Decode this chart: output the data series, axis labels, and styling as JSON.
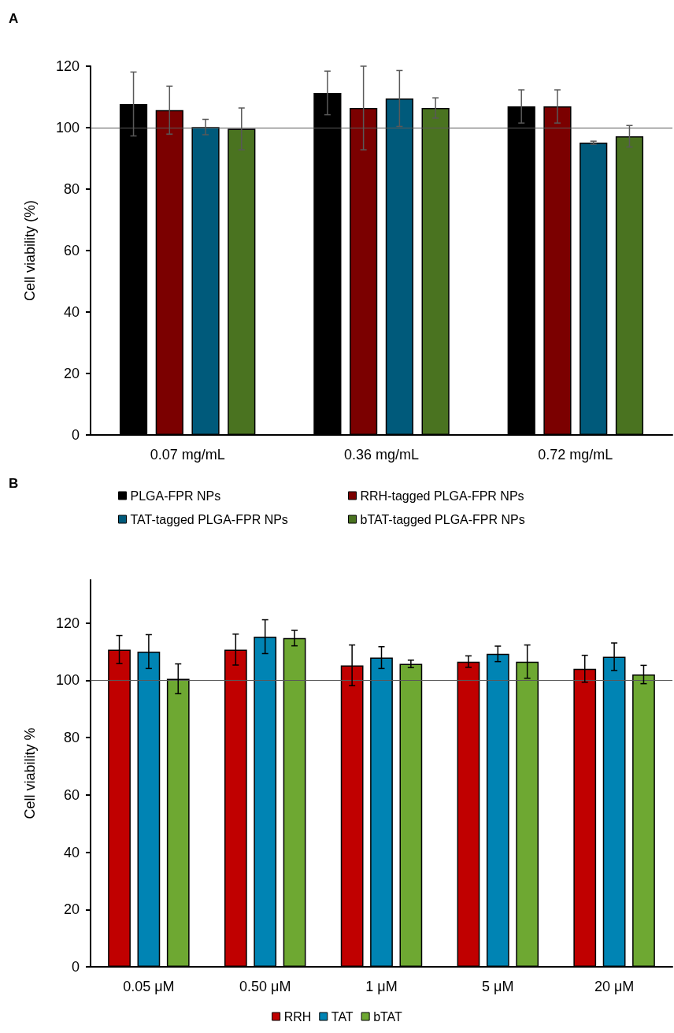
{
  "chart_data": [
    {
      "type": "bar",
      "title": "A",
      "ylabel": "Cell viability (%)",
      "categories": [
        "0.07 mg/mL",
        "0.36 mg/mL",
        "0.72 mg/mL"
      ],
      "ylim": [
        0,
        120
      ],
      "yticks": [
        0,
        20,
        40,
        60,
        80,
        100,
        120
      ],
      "grid": false,
      "legend": "bottom",
      "ref_lines": [
        {
          "axis": "y",
          "value": 100
        }
      ],
      "series": [
        {
          "name": "PLGA-FPR NPs",
          "color": "#000000",
          "values": [
            107.7,
            111.3,
            106.9
          ],
          "errors": [
            10.4,
            7.1,
            5.4
          ]
        },
        {
          "name": "RRH-tagged PLGA-FPR NPs",
          "color": "#7b0000",
          "values": [
            105.7,
            106.4,
            106.9
          ],
          "errors": [
            7.8,
            13.6,
            5.4
          ]
        },
        {
          "name": "TAT-tagged PLGA-FPR NPs",
          "color": "#005a7b",
          "values": [
            100.2,
            109.5,
            95.1
          ],
          "errors": [
            2.5,
            9.1,
            0.5
          ]
        },
        {
          "name": "bTAT-tagged PLGA-FPR NPs",
          "color": "#4a7320",
          "values": [
            99.6,
            106.4,
            97.2
          ],
          "errors": [
            6.8,
            3.3,
            3.5
          ]
        }
      ]
    },
    {
      "type": "bar",
      "title": "B",
      "ylabel": "Cell viability %",
      "categories": [
        "0.05 μM",
        "0.50 μM",
        "1 μM",
        "5 μM",
        "20 μM"
      ],
      "ylim": [
        0,
        135
      ],
      "yticks": [
        0,
        20,
        40,
        60,
        80,
        100,
        120
      ],
      "grid": false,
      "legend": "bottom",
      "ref_lines": [
        {
          "axis": "y",
          "value": 100
        }
      ],
      "series": [
        {
          "name": "RRH",
          "color": "#c00000",
          "values": [
            110.7,
            110.7,
            105.2,
            106.5,
            104.0
          ],
          "errors": [
            4.9,
            5.4,
            7.1,
            2.0,
            4.7
          ]
        },
        {
          "name": "TAT",
          "color": "#0084b4",
          "values": [
            110.0,
            115.2,
            107.9,
            109.2,
            108.2
          ],
          "errors": [
            5.9,
            5.9,
            3.8,
            2.7,
            4.8
          ]
        },
        {
          "name": "bTAT",
          "color": "#6ea832",
          "values": [
            100.5,
            114.7,
            105.7,
            106.5,
            102.0
          ],
          "errors": [
            5.2,
            2.7,
            1.3,
            5.8,
            3.2
          ]
        }
      ]
    }
  ]
}
